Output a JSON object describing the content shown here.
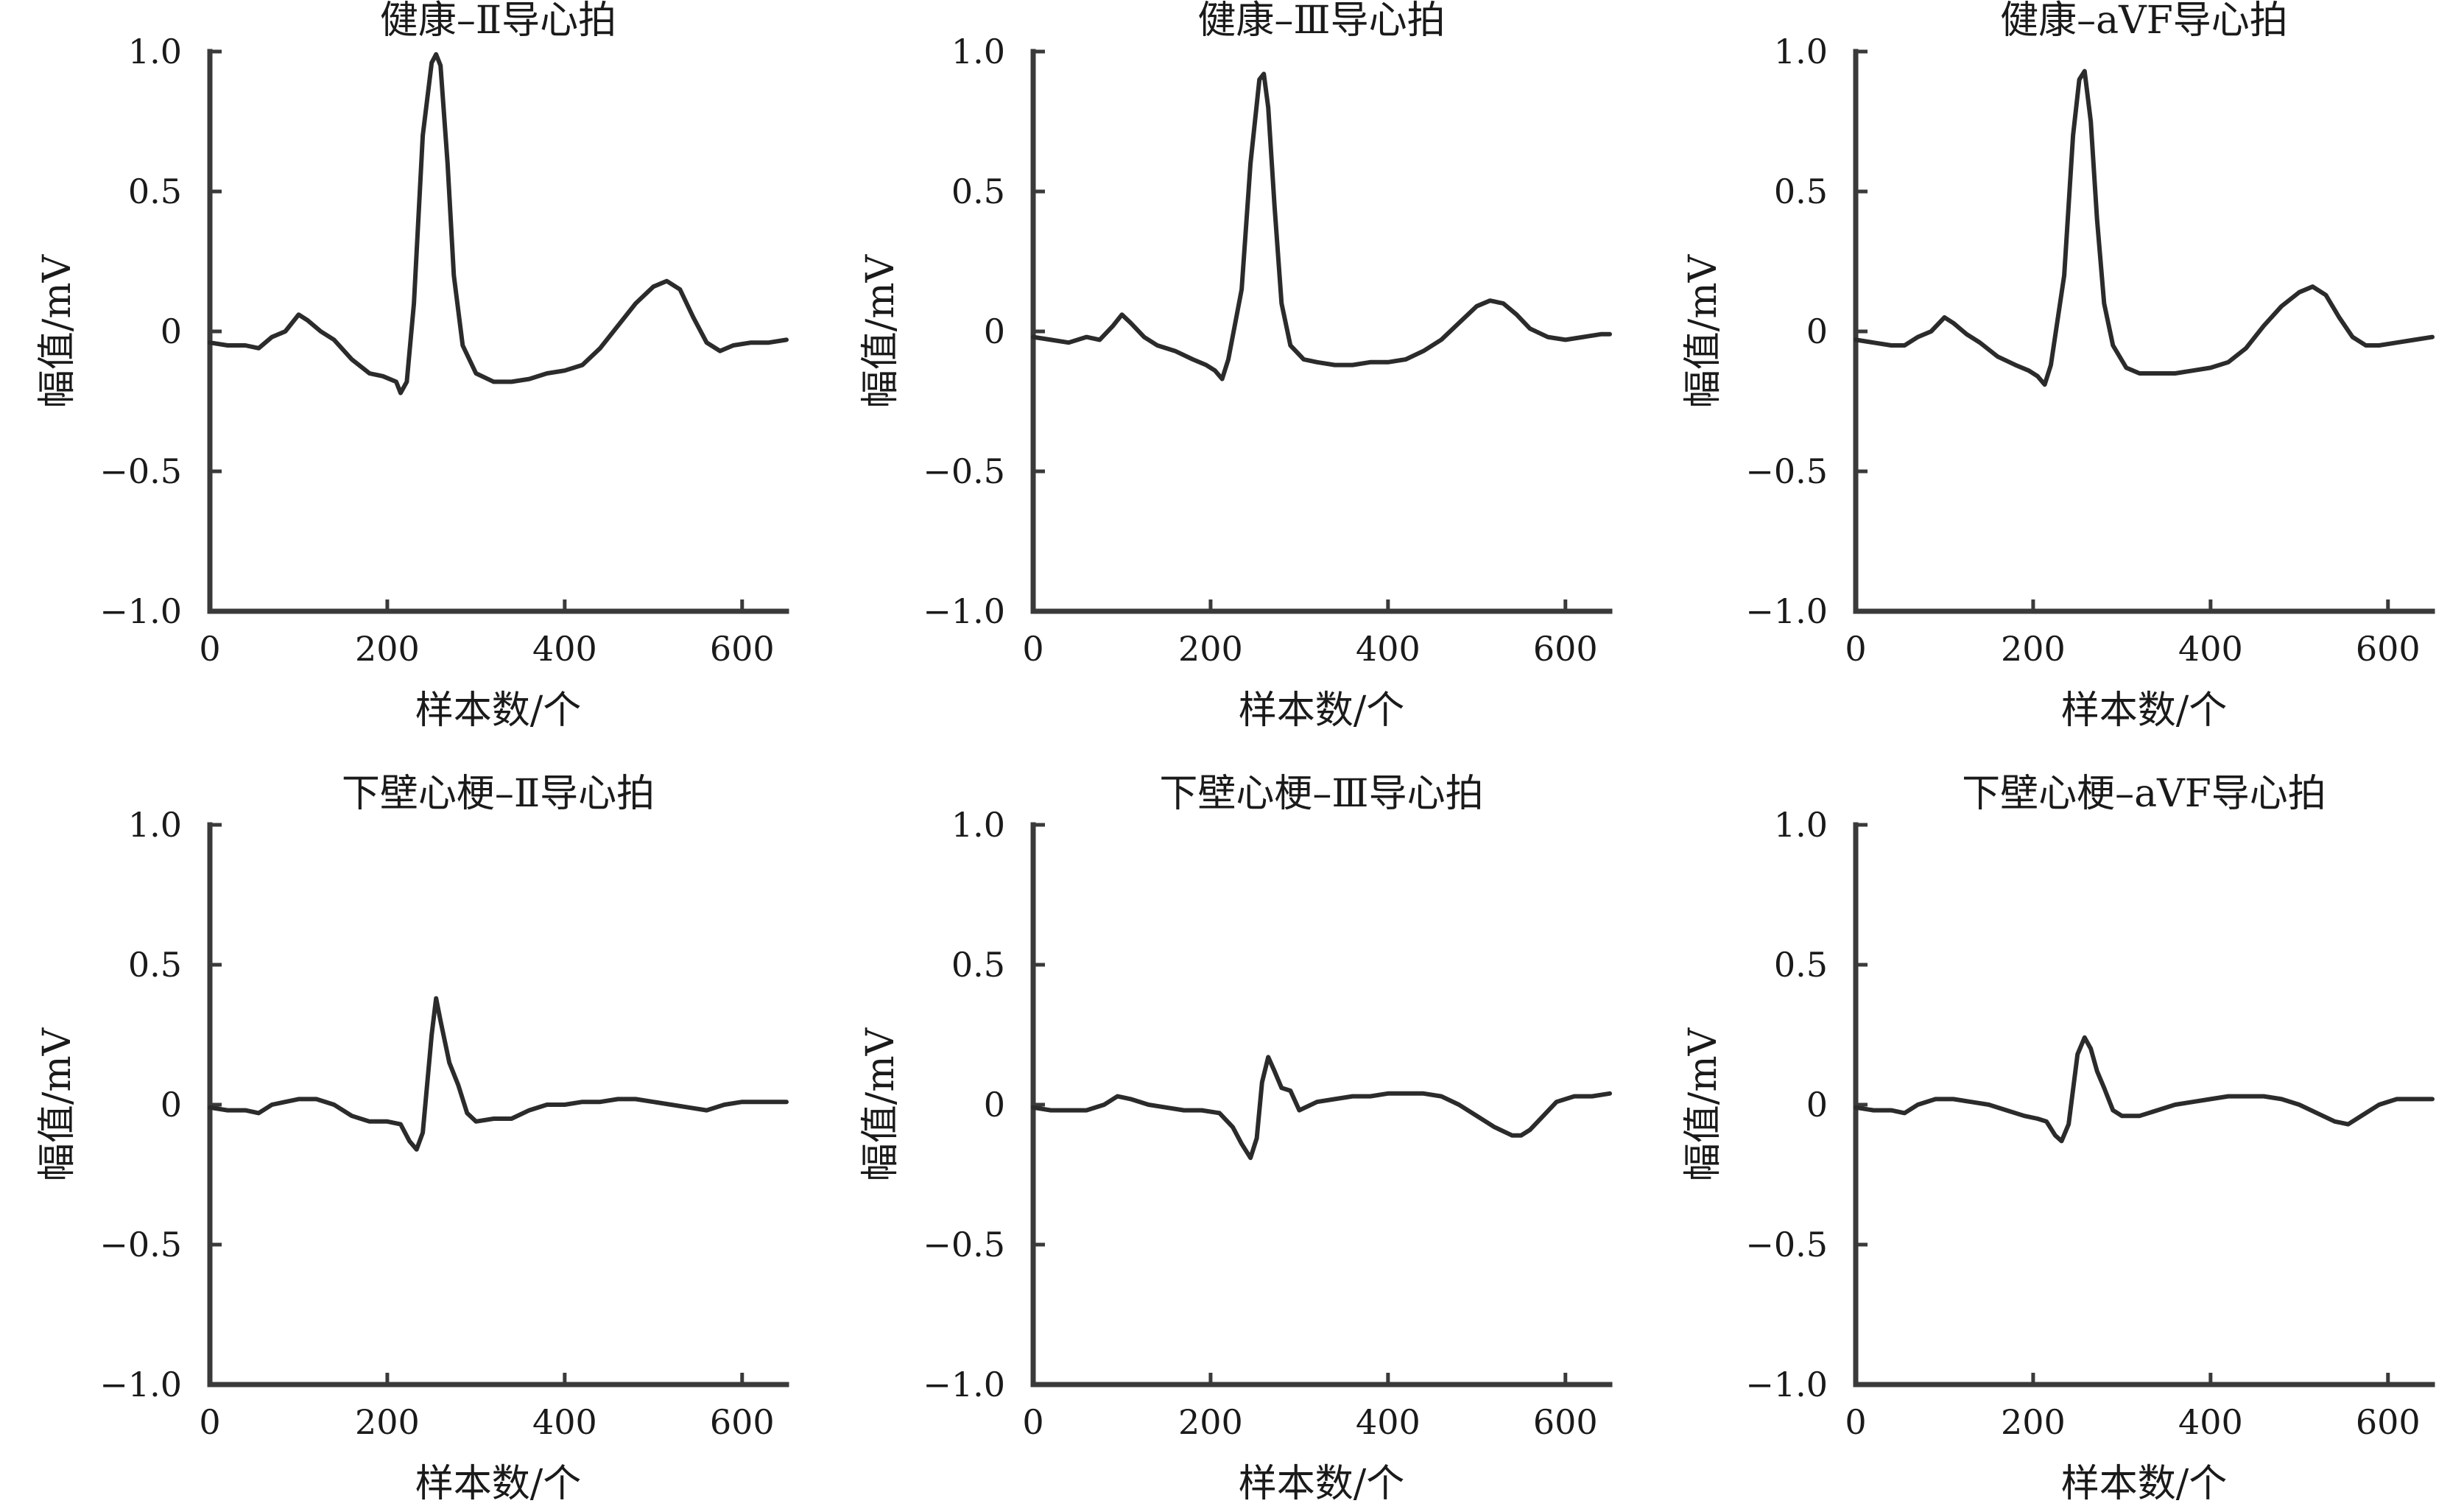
{
  "chart_data": [
    {
      "type": "line",
      "title": "健康–Ⅱ导心拍",
      "xlabel": "样本数/个",
      "ylabel": "幅值/mV",
      "xlim": [
        0,
        650
      ],
      "ylim": [
        -1.0,
        1.0
      ],
      "xticks": [
        0,
        200,
        400,
        600
      ],
      "xtick_labels": [
        "0",
        "200",
        "400",
        "600"
      ],
      "yticks": [
        1.0,
        0.5,
        0,
        -0.5,
        -1.0
      ],
      "ytick_labels": [
        "1.0",
        "0.5",
        "0",
        "−0.5",
        "−1.0"
      ],
      "grid": false,
      "series": [
        {
          "x": [
            0,
            20,
            40,
            55,
            70,
            85,
            100,
            110,
            125,
            140,
            160,
            180,
            195,
            210,
            215,
            222,
            230,
            240,
            250,
            255,
            260,
            268,
            275,
            285,
            300,
            320,
            340,
            360,
            380,
            400,
            420,
            440,
            460,
            480,
            500,
            515,
            530,
            545,
            560,
            575,
            590,
            610,
            630,
            650
          ],
          "y": [
            -0.04,
            -0.05,
            -0.05,
            -0.06,
            -0.02,
            0.0,
            0.06,
            0.04,
            0.0,
            -0.03,
            -0.1,
            -0.15,
            -0.16,
            -0.18,
            -0.22,
            -0.18,
            0.1,
            0.7,
            0.96,
            0.99,
            0.95,
            0.6,
            0.2,
            -0.05,
            -0.15,
            -0.18,
            -0.18,
            -0.17,
            -0.15,
            -0.14,
            -0.12,
            -0.06,
            0.02,
            0.1,
            0.16,
            0.18,
            0.15,
            0.05,
            -0.04,
            -0.07,
            -0.05,
            -0.04,
            -0.04,
            -0.03
          ]
        }
      ]
    },
    {
      "type": "line",
      "title": "健康–Ⅲ导心拍",
      "xlabel": "样本数/个",
      "ylabel": "幅值/mV",
      "xlim": [
        0,
        650
      ],
      "ylim": [
        -1.0,
        1.0
      ],
      "xticks": [
        0,
        200,
        400,
        600
      ],
      "xtick_labels": [
        "0",
        "200",
        "400",
        "600"
      ],
      "yticks": [
        1.0,
        0.5,
        0,
        -0.5,
        -1.0
      ],
      "ytick_labels": [
        "1.0",
        "0.5",
        "0",
        "−0.5",
        "−1.0"
      ],
      "grid": false,
      "series": [
        {
          "x": [
            0,
            20,
            40,
            60,
            75,
            90,
            100,
            110,
            125,
            140,
            160,
            180,
            195,
            205,
            213,
            220,
            235,
            245,
            255,
            260,
            265,
            272,
            280,
            290,
            305,
            320,
            340,
            360,
            380,
            400,
            420,
            440,
            460,
            480,
            500,
            515,
            530,
            545,
            560,
            580,
            600,
            620,
            640,
            650
          ],
          "y": [
            -0.02,
            -0.03,
            -0.04,
            -0.02,
            -0.03,
            0.02,
            0.06,
            0.03,
            -0.02,
            -0.05,
            -0.07,
            -0.1,
            -0.12,
            -0.14,
            -0.17,
            -0.1,
            0.15,
            0.6,
            0.9,
            0.92,
            0.8,
            0.45,
            0.1,
            -0.05,
            -0.1,
            -0.11,
            -0.12,
            -0.12,
            -0.11,
            -0.11,
            -0.1,
            -0.07,
            -0.03,
            0.03,
            0.09,
            0.11,
            0.1,
            0.06,
            0.01,
            -0.02,
            -0.03,
            -0.02,
            -0.01,
            -0.01
          ]
        }
      ]
    },
    {
      "type": "line",
      "title": "健康–aVF导心拍",
      "xlabel": "样本数/个",
      "ylabel": "幅值/mV",
      "xlim": [
        0,
        650
      ],
      "ylim": [
        -1.0,
        1.0
      ],
      "xticks": [
        0,
        200,
        400,
        600
      ],
      "xtick_labels": [
        "0",
        "200",
        "400",
        "600"
      ],
      "yticks": [
        1.0,
        0.5,
        0,
        -0.5,
        -1.0
      ],
      "ytick_labels": [
        "1.0",
        "0.5",
        "0",
        "−0.5",
        "−1.0"
      ],
      "grid": false,
      "series": [
        {
          "x": [
            0,
            20,
            40,
            55,
            70,
            85,
            100,
            110,
            125,
            140,
            160,
            180,
            195,
            205,
            213,
            220,
            235,
            245,
            252,
            258,
            265,
            272,
            280,
            290,
            305,
            320,
            340,
            360,
            380,
            400,
            420,
            440,
            460,
            480,
            500,
            515,
            530,
            545,
            560,
            575,
            590,
            610,
            630,
            650
          ],
          "y": [
            -0.03,
            -0.04,
            -0.05,
            -0.05,
            -0.02,
            0.0,
            0.05,
            0.03,
            -0.01,
            -0.04,
            -0.09,
            -0.12,
            -0.14,
            -0.16,
            -0.19,
            -0.12,
            0.2,
            0.7,
            0.9,
            0.93,
            0.75,
            0.4,
            0.1,
            -0.05,
            -0.13,
            -0.15,
            -0.15,
            -0.15,
            -0.14,
            -0.13,
            -0.11,
            -0.06,
            0.02,
            0.09,
            0.14,
            0.16,
            0.13,
            0.05,
            -0.02,
            -0.05,
            -0.05,
            -0.04,
            -0.03,
            -0.02
          ]
        }
      ]
    },
    {
      "type": "line",
      "title": "下壁心梗–Ⅱ导心拍",
      "xlabel": "样本数/个",
      "ylabel": "幅值/mV",
      "xlim": [
        0,
        650
      ],
      "ylim": [
        -1.0,
        1.0
      ],
      "xticks": [
        0,
        200,
        400,
        600
      ],
      "xtick_labels": [
        "0",
        "200",
        "400",
        "600"
      ],
      "yticks": [
        1.0,
        0.5,
        0,
        -0.5,
        -1.0
      ],
      "ytick_labels": [
        "1.0",
        "0.5",
        "0",
        "−0.5",
        "−1.0"
      ],
      "grid": false,
      "series": [
        {
          "x": [
            0,
            20,
            40,
            55,
            70,
            85,
            100,
            120,
            140,
            160,
            180,
            200,
            215,
            225,
            233,
            240,
            250,
            255,
            260,
            270,
            280,
            290,
            300,
            320,
            340,
            360,
            380,
            400,
            420,
            440,
            460,
            480,
            500,
            520,
            540,
            560,
            580,
            600,
            620,
            640,
            650
          ],
          "y": [
            -0.01,
            -0.02,
            -0.02,
            -0.03,
            0.0,
            0.01,
            0.02,
            0.02,
            0.0,
            -0.04,
            -0.06,
            -0.06,
            -0.07,
            -0.13,
            -0.16,
            -0.1,
            0.25,
            0.38,
            0.3,
            0.15,
            0.07,
            -0.03,
            -0.06,
            -0.05,
            -0.05,
            -0.02,
            0.0,
            0.0,
            0.01,
            0.01,
            0.02,
            0.02,
            0.01,
            0.0,
            -0.01,
            -0.02,
            0.0,
            0.01,
            0.01,
            0.01,
            0.01
          ]
        }
      ]
    },
    {
      "type": "line",
      "title": "下壁心梗–Ⅲ导心拍",
      "xlabel": "样本数/个",
      "ylabel": "幅值/mV",
      "xlim": [
        0,
        650
      ],
      "ylim": [
        -1.0,
        1.0
      ],
      "xticks": [
        0,
        200,
        400,
        600
      ],
      "xtick_labels": [
        "0",
        "200",
        "400",
        "600"
      ],
      "yticks": [
        1.0,
        0.5,
        0,
        -0.5,
        -1.0
      ],
      "ytick_labels": [
        "1.0",
        "0.5",
        "0",
        "−0.5",
        "−1.0"
      ],
      "grid": false,
      "series": [
        {
          "x": [
            0,
            20,
            40,
            60,
            80,
            95,
            110,
            130,
            150,
            170,
            190,
            210,
            225,
            235,
            245,
            252,
            258,
            265,
            272,
            280,
            290,
            300,
            320,
            340,
            360,
            380,
            400,
            420,
            440,
            460,
            480,
            500,
            520,
            540,
            550,
            560,
            575,
            590,
            610,
            630,
            650
          ],
          "y": [
            -0.01,
            -0.02,
            -0.02,
            -0.02,
            0.0,
            0.03,
            0.02,
            0.0,
            -0.01,
            -0.02,
            -0.02,
            -0.03,
            -0.08,
            -0.14,
            -0.19,
            -0.12,
            0.08,
            0.17,
            0.12,
            0.06,
            0.05,
            -0.02,
            0.01,
            0.02,
            0.03,
            0.03,
            0.04,
            0.04,
            0.04,
            0.03,
            0.0,
            -0.04,
            -0.08,
            -0.11,
            -0.11,
            -0.09,
            -0.04,
            0.01,
            0.03,
            0.03,
            0.04
          ]
        }
      ]
    },
    {
      "type": "line",
      "title": "下壁心梗–aVF导心拍",
      "xlabel": "样本数/个",
      "ylabel": "幅值/mV",
      "xlim": [
        0,
        650
      ],
      "ylim": [
        -1.0,
        1.0
      ],
      "xticks": [
        0,
        200,
        400,
        600
      ],
      "xtick_labels": [
        "0",
        "200",
        "400",
        "600"
      ],
      "yticks": [
        1.0,
        0.5,
        0,
        -0.5,
        -1.0
      ],
      "ytick_labels": [
        "1.0",
        "0.5",
        "0",
        "−0.5",
        "−1.0"
      ],
      "grid": false,
      "series": [
        {
          "x": [
            0,
            20,
            40,
            55,
            70,
            90,
            110,
            130,
            150,
            170,
            190,
            205,
            215,
            225,
            232,
            240,
            250,
            258,
            265,
            272,
            280,
            290,
            300,
            320,
            340,
            360,
            380,
            400,
            420,
            440,
            460,
            480,
            500,
            520,
            540,
            555,
            570,
            590,
            610,
            630,
            650
          ],
          "y": [
            -0.01,
            -0.02,
            -0.02,
            -0.03,
            0.0,
            0.02,
            0.02,
            0.01,
            0.0,
            -0.02,
            -0.04,
            -0.05,
            -0.06,
            -0.11,
            -0.13,
            -0.07,
            0.18,
            0.24,
            0.2,
            0.12,
            0.06,
            -0.02,
            -0.04,
            -0.04,
            -0.02,
            0.0,
            0.01,
            0.02,
            0.03,
            0.03,
            0.03,
            0.02,
            0.0,
            -0.03,
            -0.06,
            -0.07,
            -0.04,
            0.0,
            0.02,
            0.02,
            0.02
          ]
        }
      ]
    }
  ]
}
